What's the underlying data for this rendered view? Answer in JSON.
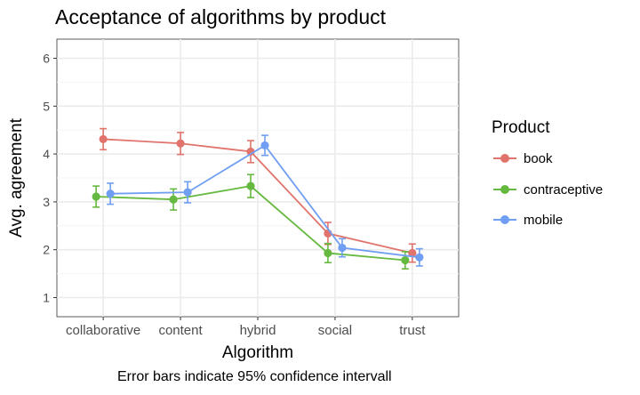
{
  "title": "Acceptance of algorithms by product",
  "caption": "Error bars indicate 95% confidence intervall",
  "colors": {
    "book": "#e0746c",
    "contraceptive": "#66b940",
    "mobile": "#6f9ef3",
    "panel_bg": "#ffffff",
    "grid": "#ebebeb",
    "axis_text": "#4d4d4d"
  },
  "chart_data": {
    "type": "line",
    "title": "Acceptance of algorithms by product",
    "xlabel": "Algorithm",
    "ylabel": "Avg. agreement",
    "categories": [
      "collaborative",
      "content",
      "hybrid",
      "social",
      "trust"
    ],
    "ylim": [
      0.6,
      6.4
    ],
    "yticks": [
      1,
      2,
      3,
      4,
      5,
      6
    ],
    "grid": true,
    "legend": {
      "title": "Product",
      "placement": "right"
    },
    "error_bars": "95% CI",
    "series": [
      {
        "name": "book",
        "color": "#e0746c",
        "values": [
          4.31,
          4.22,
          4.05,
          2.34,
          1.93
        ],
        "err": [
          0.22,
          0.23,
          0.23,
          0.23,
          0.19
        ]
      },
      {
        "name": "contraceptive",
        "color": "#66b940",
        "values": [
          3.11,
          3.05,
          3.33,
          1.93,
          1.78
        ],
        "err": [
          0.22,
          0.22,
          0.24,
          0.2,
          0.18
        ]
      },
      {
        "name": "mobile",
        "color": "#6f9ef3",
        "values": [
          3.17,
          3.2,
          4.18,
          2.04,
          1.84
        ],
        "err": [
          0.22,
          0.22,
          0.21,
          0.19,
          0.18
        ]
      }
    ]
  }
}
